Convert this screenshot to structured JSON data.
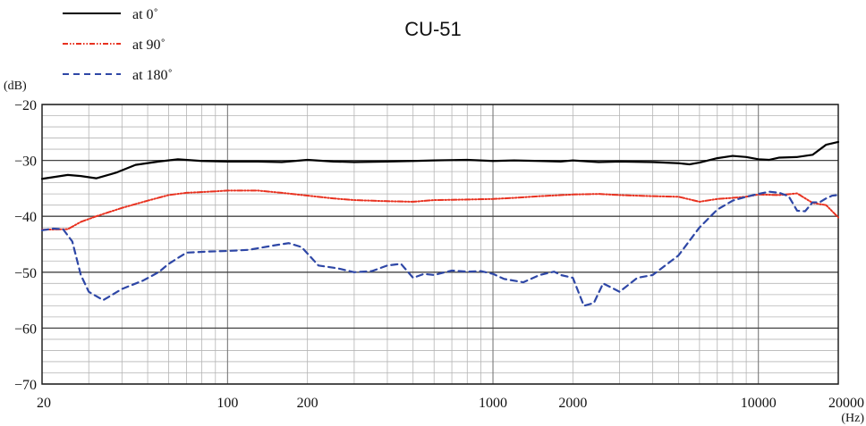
{
  "chart_data": {
    "type": "line",
    "title": "CU-51",
    "ylabel": "(dB)",
    "xlabel": "(Hz)",
    "x_scale": "log",
    "xlim": [
      20,
      20000
    ],
    "ylim": [
      -70,
      -20
    ],
    "grid": true,
    "legend_position": "top-left",
    "x_ticks": [
      20,
      100,
      200,
      1000,
      2000,
      10000,
      20000
    ],
    "x_tick_labels": [
      "20",
      "100",
      "200",
      "1000",
      "2000",
      "10000",
      "20000"
    ],
    "y_ticks": [
      -20,
      -30,
      -40,
      -50,
      -60,
      -70
    ],
    "y_tick_labels": [
      "−20",
      "−30",
      "−40",
      "−50",
      "−60",
      "−70"
    ],
    "series": [
      {
        "name": "at 0˚",
        "color": "#000000",
        "dash": "solid",
        "x": [
          20,
          25,
          28,
          32,
          38,
          45,
          55,
          65,
          80,
          100,
          130,
          160,
          200,
          250,
          300,
          400,
          500,
          600,
          800,
          1000,
          1200,
          1500,
          1800,
          2000,
          2500,
          3000,
          4000,
          5000,
          5500,
          6000,
          7000,
          8000,
          9000,
          10000,
          11000,
          12000,
          14000,
          16000,
          18000,
          20000
        ],
        "values": [
          -33.3,
          -32.6,
          -32.8,
          -33.2,
          -32.2,
          -30.8,
          -30.2,
          -29.8,
          -30.1,
          -30.2,
          -30.2,
          -30.3,
          -29.9,
          -30.2,
          -30.3,
          -30.2,
          -30.1,
          -30.0,
          -29.9,
          -30.1,
          -30.0,
          -30.1,
          -30.2,
          -30.0,
          -30.3,
          -30.2,
          -30.3,
          -30.5,
          -30.7,
          -30.4,
          -29.6,
          -29.2,
          -29.4,
          -29.8,
          -29.9,
          -29.5,
          -29.4,
          -29.0,
          -27.2,
          -26.7
        ]
      },
      {
        "name": "at 90˚",
        "color": "#e8311f",
        "dash": "dashdot",
        "x": [
          20,
          25,
          28,
          32,
          40,
          50,
          60,
          70,
          85,
          100,
          130,
          160,
          200,
          250,
          300,
          400,
          500,
          600,
          800,
          1000,
          1200,
          1500,
          2000,
          2500,
          3000,
          4000,
          5000,
          6000,
          7000,
          8000,
          9000,
          10000,
          12000,
          14000,
          16000,
          18000,
          20000
        ],
        "values": [
          -42.4,
          -42.3,
          -41.0,
          -40.0,
          -38.5,
          -37.2,
          -36.2,
          -35.8,
          -35.6,
          -35.4,
          -35.4,
          -35.8,
          -36.3,
          -36.8,
          -37.1,
          -37.3,
          -37.4,
          -37.1,
          -37.0,
          -36.9,
          -36.7,
          -36.4,
          -36.1,
          -36.0,
          -36.2,
          -36.4,
          -36.5,
          -37.4,
          -36.9,
          -36.7,
          -36.5,
          -36.1,
          -36.2,
          -35.9,
          -37.6,
          -38.0,
          -40.2
        ]
      },
      {
        "name": "at 180˚",
        "color": "#2e47a6",
        "dash": "dashed",
        "x": [
          20,
          22,
          24,
          26,
          28,
          30,
          34,
          40,
          48,
          55,
          60,
          70,
          85,
          100,
          120,
          150,
          170,
          190,
          220,
          260,
          300,
          350,
          400,
          450,
          500,
          550,
          600,
          700,
          800,
          900,
          1000,
          1100,
          1300,
          1500,
          1700,
          1800,
          2000,
          2200,
          2400,
          2600,
          3000,
          3500,
          4000,
          5000,
          6000,
          7000,
          8000,
          9000,
          10000,
          11000,
          12000,
          13000,
          14000,
          15000,
          16000,
          17000,
          18000,
          19000,
          20000
        ],
        "values": [
          -42.5,
          -42.2,
          -42.3,
          -44.5,
          -50.5,
          -53.5,
          -55.0,
          -53.0,
          -51.5,
          -50.0,
          -48.5,
          -46.5,
          -46.3,
          -46.2,
          -46.0,
          -45.2,
          -44.8,
          -45.5,
          -48.8,
          -49.3,
          -50.0,
          -49.8,
          -48.8,
          -48.5,
          -51.0,
          -50.3,
          -50.5,
          -49.7,
          -49.9,
          -49.8,
          -50.3,
          -51.2,
          -51.8,
          -50.5,
          -49.9,
          -50.5,
          -51.0,
          -56.0,
          -55.5,
          -52.0,
          -53.5,
          -51.0,
          -50.5,
          -47.0,
          -42.0,
          -38.8,
          -37.2,
          -36.5,
          -36.0,
          -35.6,
          -35.8,
          -36.4,
          -39.0,
          -39.1,
          -37.5,
          -37.5,
          -36.8,
          -36.3,
          -36.2
        ]
      }
    ]
  }
}
